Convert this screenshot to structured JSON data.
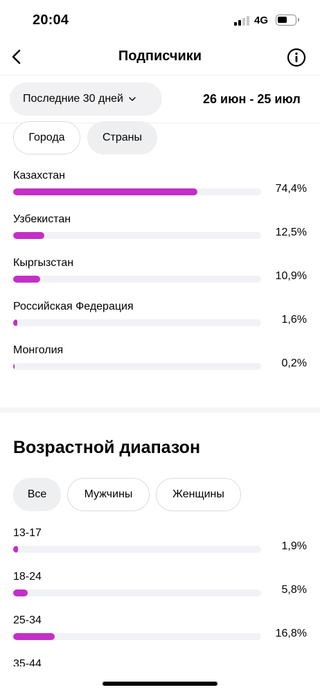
{
  "status_bar": {
    "time": "20:04",
    "network": "4G"
  },
  "nav": {
    "title": "Подписчики",
    "back_icon": "chevron-left-icon",
    "info_icon": "info-icon"
  },
  "date_filter": {
    "period_label": "Последние 30 дней",
    "range": "26 июн - 25 июл"
  },
  "location": {
    "tabs": [
      {
        "label": "Города"
      },
      {
        "label": "Страны"
      }
    ],
    "selected_tab": "Страны",
    "items": [
      {
        "label": "Казахстан",
        "value": "74,4%",
        "percent": 74.4
      },
      {
        "label": "Узбекистан",
        "value": "12,5%",
        "percent": 12.5
      },
      {
        "label": "Кыргызстан",
        "value": "10,9%",
        "percent": 10.9
      },
      {
        "label": "Российская Федерация",
        "value": "1,6%",
        "percent": 1.6
      },
      {
        "label": "Монголия",
        "value": "0,2%",
        "percent": 0.2
      }
    ]
  },
  "age": {
    "title": "Возрастной диапазон",
    "tabs": [
      {
        "label": "Все"
      },
      {
        "label": "Мужчины"
      },
      {
        "label": "Женщины"
      }
    ],
    "selected_tab": "Все",
    "items": [
      {
        "label": "13-17",
        "value": "1,9%",
        "percent": 1.9
      },
      {
        "label": "18-24",
        "value": "5,8%",
        "percent": 5.8
      },
      {
        "label": "25-34",
        "value": "16,8%",
        "percent": 16.8
      },
      {
        "label": "35-44",
        "value": "",
        "percent": null
      }
    ]
  },
  "colors": {
    "bar_fill": "#c32fc7",
    "bar_track": "#f1f2f5"
  }
}
